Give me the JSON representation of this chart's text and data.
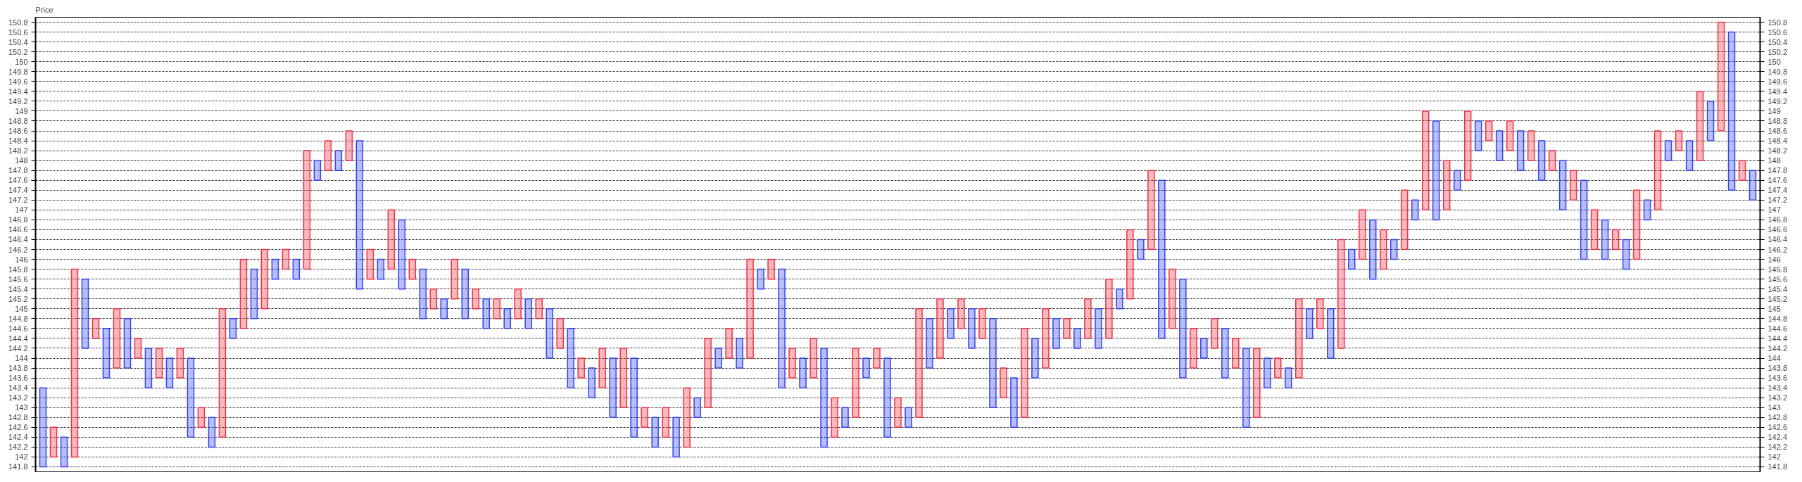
{
  "chart_data": {
    "type": "bar",
    "ylabel": "Price",
    "categories": [
      null,
      null,
      null,
      null,
      null,
      null,
      null,
      null,
      null,
      null,
      null,
      null,
      null,
      null,
      null,
      null,
      null,
      null,
      null,
      null,
      null,
      null,
      null,
      null,
      null,
      null,
      null,
      null,
      null,
      null,
      null,
      null,
      null,
      null,
      null,
      null,
      null,
      null,
      null,
      null,
      null,
      null,
      null,
      null,
      null,
      null,
      null,
      null,
      null,
      null,
      null,
      null,
      null,
      null,
      null,
      null,
      null,
      null,
      null,
      null,
      null,
      null,
      null,
      null,
      null,
      null,
      null,
      null,
      null,
      null,
      null,
      null,
      null,
      null,
      null,
      null,
      null,
      null,
      null,
      null,
      null,
      null,
      null,
      null,
      null,
      null,
      null,
      null,
      null,
      null,
      null,
      null,
      null,
      null,
      null,
      null,
      null,
      null,
      null,
      null,
      null,
      null,
      null,
      null,
      null,
      null,
      null,
      null,
      null,
      null,
      null,
      null,
      null,
      null,
      null,
      null,
      null,
      null,
      null,
      null,
      null,
      null,
      null,
      null,
      null,
      null,
      null,
      null,
      null,
      null,
      null,
      null,
      null,
      null,
      null,
      null,
      null,
      null,
      null,
      null,
      null,
      null,
      null,
      null,
      null,
      null,
      null,
      null,
      null,
      null,
      null,
      null,
      null,
      null,
      null,
      null,
      null,
      null,
      null,
      null,
      null,
      null,
      null
    ],
    "base": [
      141.8,
      142.0,
      141.8,
      142.0,
      144.2,
      144.4,
      143.6,
      143.8,
      143.8,
      144.0,
      143.4,
      143.6,
      143.4,
      143.6,
      142.4,
      142.6,
      142.2,
      142.4,
      144.4,
      144.6,
      144.8,
      145.0,
      145.6,
      145.8,
      145.6,
      145.8,
      147.6,
      147.8,
      147.8,
      148.0,
      145.4,
      145.6,
      145.6,
      145.8,
      145.4,
      145.6,
      144.8,
      145.0,
      144.8,
      145.2,
      144.8,
      145.0,
      144.6,
      144.8,
      144.6,
      144.8,
      144.6,
      144.8,
      144.0,
      144.2,
      143.4,
      143.6,
      143.2,
      143.4,
      142.8,
      143.0,
      142.4,
      142.6,
      142.2,
      142.4,
      142.0,
      142.2,
      142.8,
      143.0,
      143.8,
      144.0,
      143.8,
      144.0,
      145.4,
      145.6,
      143.4,
      143.6,
      143.4,
      143.6,
      142.2,
      142.4,
      142.6,
      142.8,
      143.6,
      143.8,
      142.4,
      142.6,
      142.6,
      142.8,
      143.8,
      144.0,
      144.4,
      144.6,
      144.2,
      144.4,
      143.0,
      143.2,
      142.6,
      142.8,
      143.6,
      143.8,
      144.2,
      144.4,
      144.2,
      144.4,
      144.2,
      144.4,
      145.0,
      145.2,
      146.0,
      146.2,
      144.4,
      144.6,
      143.6,
      143.8,
      144.0,
      144.2,
      143.6,
      143.8,
      142.6,
      142.8,
      143.4,
      143.6,
      143.4,
      143.6,
      144.4,
      144.6,
      144.0,
      144.2,
      145.8,
      146.0,
      145.6,
      145.8,
      146.0,
      146.2,
      146.8,
      147.0,
      146.8,
      147.0,
      147.4,
      147.6,
      148.2,
      148.4,
      148.0,
      148.2,
      147.8,
      148.0,
      147.6,
      147.8,
      147.0,
      147.2,
      146.0,
      146.2,
      146.0,
      146.2,
      145.8,
      146.0,
      146.8,
      147.0,
      148.0,
      148.2,
      147.8,
      148.0,
      148.4,
      148.6,
      147.4,
      147.6,
      147.2
    ],
    "values": [
      1.6,
      0.6,
      0.6,
      3.8,
      1.4,
      0.4,
      1.0,
      1.2,
      1.0,
      0.4,
      0.8,
      0.6,
      0.6,
      0.6,
      1.6,
      0.4,
      0.6,
      2.6,
      0.4,
      1.4,
      1.0,
      1.2,
      0.4,
      0.4,
      0.4,
      2.4,
      0.4,
      0.6,
      0.4,
      0.6,
      3.0,
      0.6,
      0.4,
      1.2,
      1.4,
      0.4,
      1.0,
      0.4,
      0.4,
      0.8,
      1.0,
      0.4,
      0.6,
      0.4,
      0.4,
      0.6,
      0.6,
      0.4,
      1.0,
      0.6,
      1.2,
      0.4,
      0.6,
      0.8,
      1.2,
      1.2,
      1.6,
      0.4,
      0.6,
      0.6,
      0.8,
      1.2,
      0.4,
      1.4,
      0.4,
      0.6,
      0.6,
      2.0,
      0.4,
      0.4,
      2.4,
      0.6,
      0.6,
      0.8,
      2.0,
      0.8,
      0.4,
      1.4,
      0.4,
      0.4,
      1.6,
      0.6,
      0.4,
      2.2,
      1.0,
      1.2,
      0.6,
      0.6,
      0.8,
      0.6,
      1.8,
      0.6,
      1.0,
      1.8,
      0.8,
      1.2,
      0.6,
      0.4,
      0.4,
      0.8,
      0.8,
      1.2,
      0.4,
      1.4,
      0.4,
      1.6,
      3.2,
      1.2,
      2.0,
      0.8,
      0.4,
      0.6,
      1.0,
      0.6,
      1.6,
      1.4,
      0.6,
      0.4,
      0.4,
      1.6,
      0.6,
      0.6,
      1.0,
      2.2,
      0.4,
      1.0,
      1.2,
      0.8,
      0.4,
      1.2,
      0.4,
      2.0,
      2.0,
      1.0,
      0.4,
      1.4,
      0.6,
      0.4,
      0.6,
      0.6,
      0.8,
      0.6,
      0.8,
      0.4,
      1.0,
      0.6,
      1.6,
      0.8,
      0.8,
      0.4,
      0.6,
      1.4,
      0.4,
      1.6,
      0.4,
      0.4,
      0.6,
      1.4,
      0.8,
      2.2,
      3.2,
      0.4,
      0.6
    ],
    "colors": [
      "#3344ee",
      "#ee3344",
      "#3344ee",
      "#ee3344",
      "#3344ee",
      "#ee3344",
      "#3344ee",
      "#ee3344",
      "#3344ee",
      "#ee3344",
      "#3344ee",
      "#ee3344",
      "#3344ee",
      "#ee3344",
      "#3344ee",
      "#ee3344",
      "#3344ee",
      "#ee3344",
      "#3344ee",
      "#ee3344",
      "#3344ee",
      "#ee3344",
      "#3344ee",
      "#ee3344",
      "#3344ee",
      "#ee3344",
      "#3344ee",
      "#ee3344",
      "#3344ee",
      "#ee3344",
      "#3344ee",
      "#ee3344",
      "#3344ee",
      "#ee3344",
      "#3344ee",
      "#ee3344",
      "#3344ee",
      "#ee3344",
      "#3344ee",
      "#ee3344",
      "#3344ee",
      "#ee3344",
      "#3344ee",
      "#ee3344",
      "#3344ee",
      "#ee3344",
      "#3344ee",
      "#ee3344",
      "#3344ee",
      "#ee3344",
      "#3344ee",
      "#ee3344",
      "#3344ee",
      "#ee3344",
      "#3344ee",
      "#ee3344",
      "#3344ee",
      "#ee3344",
      "#3344ee",
      "#ee3344",
      "#3344ee",
      "#ee3344",
      "#3344ee",
      "#ee3344",
      "#3344ee",
      "#ee3344",
      "#3344ee",
      "#ee3344",
      "#3344ee",
      "#ee3344",
      "#3344ee",
      "#ee3344",
      "#3344ee",
      "#ee3344",
      "#3344ee",
      "#ee3344",
      "#3344ee",
      "#ee3344",
      "#3344ee",
      "#ee3344",
      "#3344ee",
      "#ee3344",
      "#3344ee",
      "#ee3344",
      "#3344ee",
      "#ee3344",
      "#3344ee",
      "#ee3344",
      "#3344ee",
      "#ee3344",
      "#3344ee",
      "#ee3344",
      "#3344ee",
      "#ee3344",
      "#3344ee",
      "#ee3344",
      "#3344ee",
      "#ee3344",
      "#3344ee",
      "#ee3344",
      "#3344ee",
      "#ee3344",
      "#3344ee",
      "#ee3344",
      "#3344ee",
      "#ee3344",
      "#3344ee",
      "#ee3344",
      "#3344ee",
      "#ee3344",
      "#3344ee",
      "#ee3344",
      "#3344ee",
      "#ee3344",
      "#3344ee",
      "#ee3344",
      "#3344ee",
      "#ee3344",
      "#3344ee",
      "#ee3344",
      "#3344ee",
      "#ee3344",
      "#3344ee",
      "#ee3344",
      "#3344ee",
      "#ee3344",
      "#3344ee",
      "#ee3344",
      "#3344ee",
      "#ee3344",
      "#3344ee",
      "#ee3344",
      "#3344ee",
      "#ee3344",
      "#3344ee",
      "#ee3344",
      "#3344ee",
      "#ee3344",
      "#3344ee",
      "#ee3344",
      "#3344ee",
      "#ee3344",
      "#3344ee",
      "#ee3344",
      "#3344ee",
      "#ee3344",
      "#3344ee",
      "#ee3344",
      "#3344ee",
      "#ee3344",
      "#3344ee",
      "#ee3344",
      "#3344ee",
      "#ee3344",
      "#3344ee",
      "#ee3344",
      "#3344ee",
      "#ee3344",
      "#3344ee",
      "#ee3344",
      "#3344ee",
      "#ee3344",
      "#3344ee"
    ],
    "ylim": [
      141.7,
      150.9
    ],
    "yticks": [
      141.8,
      142,
      142.2,
      142.4,
      142.6,
      142.8,
      143,
      143.2,
      143.4,
      143.6,
      143.8,
      144,
      144.2,
      144.4,
      144.6,
      144.8,
      145,
      145.2,
      145.4,
      145.6,
      145.8,
      146,
      146.2,
      146.4,
      146.6,
      146.8,
      147,
      147.2,
      147.4,
      147.6,
      147.8,
      148,
      148.2,
      148.4,
      148.6,
      148.8,
      149,
      149.2,
      149.4,
      149.6,
      149.8,
      150,
      150.2,
      150.4,
      150.6,
      150.8
    ],
    "y2lim": [
      141.7,
      150.9
    ],
    "y2ticks": [
      141.8,
      142,
      142.2,
      142.4,
      142.6,
      142.8,
      143,
      143.2,
      143.4,
      143.6,
      143.8,
      144,
      144.2,
      144.4,
      144.6,
      144.8,
      145,
      145.2,
      145.4,
      145.6,
      145.8,
      146,
      146.2,
      146.4,
      146.6,
      146.8,
      147,
      147.2,
      147.4,
      147.6,
      147.8,
      148,
      148.2,
      148.4,
      148.6,
      148.8,
      149,
      149.2,
      149.4,
      149.6,
      149.8,
      150,
      150.2,
      150.4,
      150.6,
      150.8
    ],
    "grid": "y",
    "tick_labels": "y"
  }
}
